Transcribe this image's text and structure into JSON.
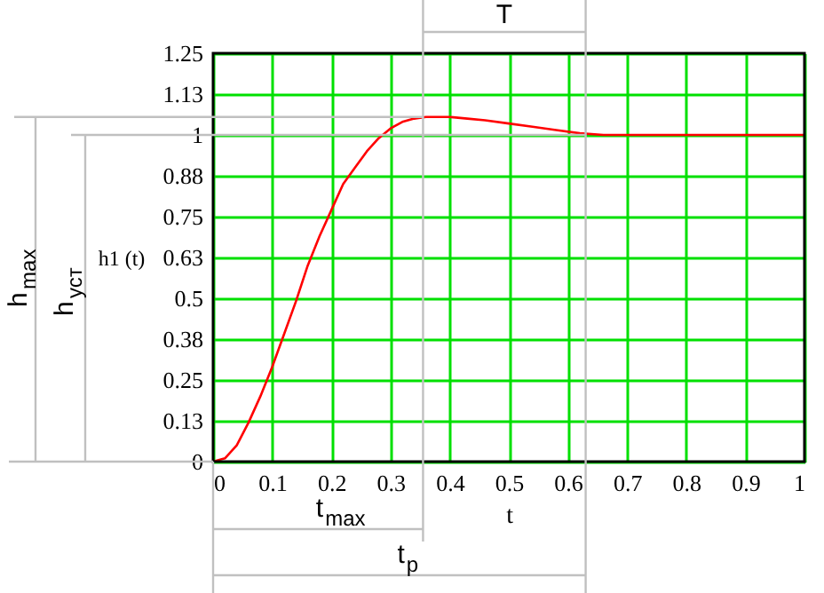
{
  "chart_data": {
    "type": "line",
    "xlabel": "t",
    "ylabel": "h1 (t)",
    "x": [
      0,
      0.02,
      0.04,
      0.06,
      0.08,
      0.1,
      0.12,
      0.14,
      0.16,
      0.18,
      0.2,
      0.22,
      0.24,
      0.26,
      0.28,
      0.3,
      0.32,
      0.34,
      0.36,
      0.38,
      0.4,
      0.43,
      0.46,
      0.5,
      0.54,
      0.58,
      0.62,
      0.66,
      0.7,
      0.8,
      0.9,
      1
    ],
    "series": [
      {
        "color": "#ff0000",
        "values": [
          0,
          0.01,
          0.05,
          0.12,
          0.2,
          0.29,
          0.39,
          0.49,
          0.6,
          0.69,
          0.77,
          0.85,
          0.9,
          0.95,
          0.99,
          1.02,
          1.04,
          1.05,
          1.055,
          1.055,
          1.055,
          1.05,
          1.045,
          1.035,
          1.025,
          1.015,
          1.005,
          1.0,
          1.0,
          1.0,
          1.0,
          1.0
        ]
      }
    ],
    "xlim": [
      0,
      1
    ],
    "xticks": [
      0,
      0.1,
      0.2,
      0.3,
      0.4,
      0.5,
      0.6,
      0.7,
      0.8,
      0.9,
      1
    ],
    "ylim": [
      0,
      1.25
    ],
    "yticks": [
      0,
      {
        "value": 0.125,
        "label": "0.13"
      },
      0.25,
      {
        "value": 0.375,
        "label": "0.38"
      },
      0.5,
      {
        "value": 0.625,
        "label": "0.63"
      },
      0.75,
      {
        "value": 0.875,
        "label": "0.88"
      },
      1,
      {
        "value": 1.125,
        "label": "1.13"
      },
      1.25
    ],
    "grid": true,
    "marker": "none",
    "line_style": "solid",
    "ref_lines": [
      {
        "axis": "x",
        "value": 0.355,
        "color": "#c0c0c0"
      },
      {
        "axis": "x",
        "value": 0.63,
        "color": "#c0c0c0"
      },
      {
        "axis": "y",
        "value": 1.055,
        "color": "#c0c0c0"
      },
      {
        "axis": "y",
        "value": 1,
        "color": "#c0c0c0"
      }
    ],
    "annotations": [
      "T",
      "t$_{max}$",
      "t$_{p}$",
      "h$_{max}$",
      "h$_{уст}$"
    ]
  }
}
